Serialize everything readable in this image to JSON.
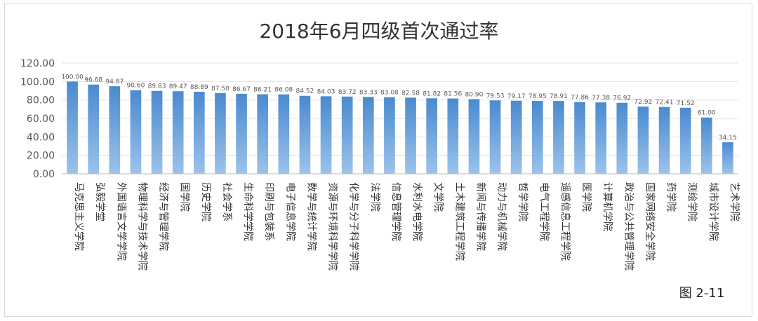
{
  "chart_data": {
    "type": "bar",
    "title": "2018年6月四级首次通过率",
    "xlabel": "",
    "ylabel": "",
    "ylim": [
      0,
      120
    ],
    "yticks": [
      "0.00",
      "20.00",
      "40.00",
      "60.00",
      "80.00",
      "100.00",
      "120.00"
    ],
    "grid": true,
    "legend": "none",
    "bar_color": "#5b9bd5",
    "categories": [
      "马克思主义学院",
      "弘毅学堂",
      "外国语言文学学院",
      "物理科学与技术学院",
      "经济与管理学院",
      "国学院",
      "历史学院",
      "社会学系",
      "生命科学学院",
      "印刷与包装系",
      "电子信息学院",
      "数学与统计学院",
      "资源与环境科学学院",
      "化学与分子科学学院",
      "法学院",
      "信息管理学院",
      "水利水电学院",
      "文学院",
      "土木建筑工程学院",
      "新闻与传播学院",
      "动力与机械学院",
      "哲学学院",
      "电气工程学院",
      "遥感信息工程学院",
      "医学院",
      "计算机学院",
      "政治与公共管理学院",
      "国家网络安全学院",
      "药学院",
      "测绘学院",
      "城市设计学院",
      "艺术学院"
    ],
    "values": [
      100.0,
      96.68,
      94.87,
      90.6,
      89.83,
      89.47,
      88.89,
      87.5,
      86.67,
      86.21,
      86.08,
      84.52,
      84.03,
      83.72,
      83.33,
      83.08,
      82.58,
      81.82,
      81.56,
      80.9,
      79.53,
      79.17,
      78.95,
      78.91,
      77.86,
      77.38,
      76.92,
      72.92,
      72.41,
      71.52,
      61.0,
      34.15
    ],
    "data_labels": [
      "100.00",
      "96.68",
      "94.87",
      "90.60",
      "89.83",
      "89.47",
      "88.89",
      "87.50",
      "86.67",
      "86.21",
      "86.08",
      "84.52",
      "84.03",
      "83.72",
      "83.33",
      "83.08",
      "82.58",
      "81.82",
      "81.56",
      "80.90",
      "79.53",
      "79.17",
      "78.95",
      "78.91",
      "77.86",
      "77.38",
      "76.92",
      "72.92",
      "72.41",
      "71.52",
      "61.00",
      "34.15"
    ]
  },
  "figure_label": "图 2-11"
}
